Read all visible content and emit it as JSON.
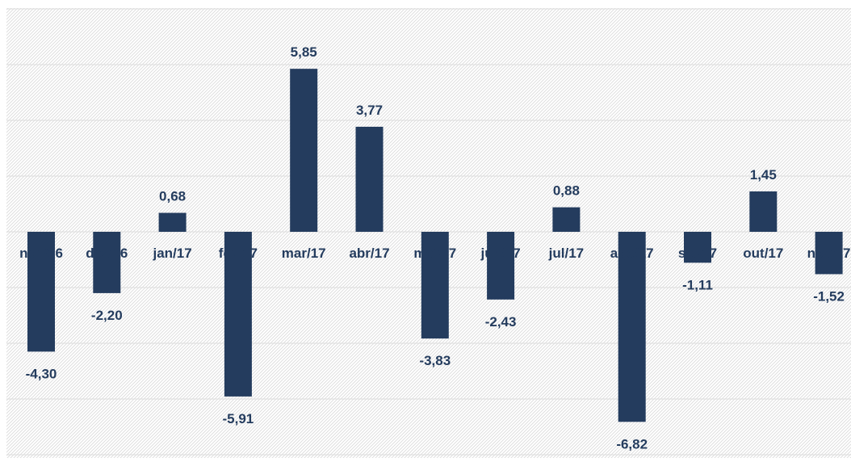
{
  "chart_data": {
    "type": "bar",
    "categories": [
      "nov/16",
      "dez/16",
      "jan/17",
      "fev/17",
      "mar/17",
      "abr/17",
      "mai/17",
      "jun/17",
      "jul/17",
      "ago/17",
      "set/17",
      "out/17",
      "nov/17"
    ],
    "values": [
      -4.3,
      -2.2,
      0.68,
      -5.91,
      5.85,
      3.77,
      -3.83,
      -2.43,
      0.88,
      -6.82,
      -1.11,
      1.45,
      -1.52
    ],
    "value_labels": [
      "-4,30",
      "-2,20",
      "0,68",
      "-5,91",
      "5,85",
      "3,77",
      "-3,83",
      "-2,43",
      "0,88",
      "-6,82",
      "-1,11",
      "1,45",
      "-1,52"
    ],
    "title": "",
    "xlabel": "",
    "ylabel": "",
    "ylim": [
      -8,
      8
    ],
    "grid": true,
    "legend": "none",
    "colors": {
      "bar": "#243c5e",
      "label": "#243c5e",
      "grid": "#dcdcdc",
      "hatch": "#d9d9d9"
    }
  }
}
